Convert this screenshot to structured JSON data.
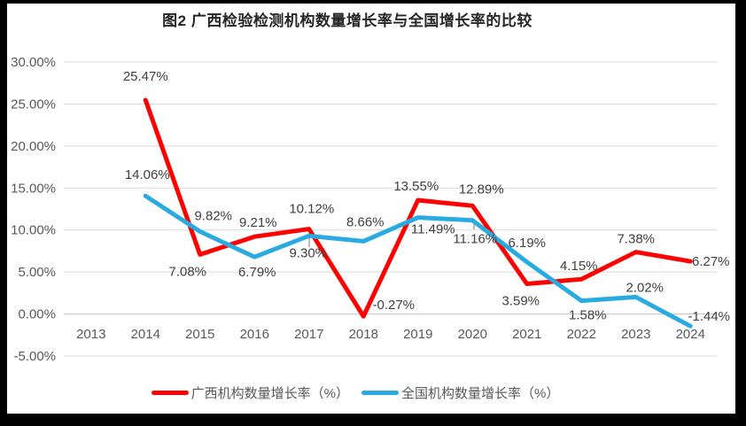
{
  "title": "图2 广西检验检测机构数量增长率与全国增长率的比较",
  "colors": {
    "background": "#FFFFFF",
    "frame": "#000000",
    "grid": "#D9D9D9",
    "zero_line": "#C3C3C3",
    "leader_line": "#A6A6A6",
    "axis_text": "#595959",
    "data_label_text": "#404040",
    "series_guangxi": "#FF0000",
    "series_national": "#29ABE2"
  },
  "chart_data": {
    "type": "line",
    "title": "图2 广西检验检测机构数量增长率与全国增长率的比较",
    "categories": [
      "2013",
      "2014",
      "2015",
      "2016",
      "2017",
      "2018",
      "2019",
      "2020",
      "2021",
      "2022",
      "2023",
      "2024"
    ],
    "xlabel": "",
    "ylabel": "",
    "grid": true,
    "legend_position": "bottom",
    "y_axis": {
      "min": -5,
      "max": 30,
      "step": 5,
      "tick_labels": [
        "30.00%",
        "25.00%",
        "20.00%",
        "15.00%",
        "10.00%",
        "5.00%",
        "0.00%",
        "-5.00%"
      ]
    },
    "series": [
      {
        "name": "广西机构数量增长率（%）",
        "color": "#FF0000",
        "x": [
          "2014",
          "2015",
          "2016",
          "2017",
          "2018",
          "2019",
          "2020",
          "2021",
          "2022",
          "2023",
          "2024"
        ],
        "values": [
          25.47,
          7.08,
          9.21,
          10.12,
          -0.27,
          13.55,
          12.89,
          3.59,
          4.15,
          7.38,
          6.27
        ],
        "labels": [
          "25.47%",
          "7.08%",
          "9.21%",
          "10.12%",
          "-0.27%",
          "13.55%",
          "12.89%",
          "3.59%",
          "4.15%",
          "7.38%",
          "6.27%"
        ],
        "label_offsets": [
          [
            0,
            -22
          ],
          [
            -14,
            24
          ],
          [
            4,
            -11
          ],
          [
            3,
            -18
          ],
          [
            34,
            -8
          ],
          [
            -2,
            -11
          ],
          [
            10,
            -14
          ],
          [
            -7,
            24
          ],
          [
            -3,
            -10
          ],
          [
            0,
            -10
          ],
          [
            23,
            5
          ]
        ]
      },
      {
        "name": "全国机构数量增长率（%）",
        "color": "#29ABE2",
        "x": [
          "2014",
          "2015",
          "2016",
          "2017",
          "2018",
          "2019",
          "2020",
          "2021",
          "2022",
          "2023",
          "2024"
        ],
        "values": [
          14.06,
          9.82,
          6.79,
          9.3,
          8.66,
          11.49,
          11.16,
          6.19,
          1.58,
          2.02,
          -1.44
        ],
        "labels": [
          "14.06%",
          "9.82%",
          "6.79%",
          "9.30%",
          "8.66%",
          "11.49%",
          "11.16%",
          "6.19%",
          "1.58%",
          "2.02%",
          "-1.44%"
        ],
        "label_offsets": [
          [
            2,
            -19
          ],
          [
            15,
            -13
          ],
          [
            3,
            22
          ],
          [
            -1,
            24
          ],
          [
            2,
            -17
          ],
          [
            17,
            18
          ],
          [
            3,
            26
          ],
          [
            0,
            -17
          ],
          [
            7,
            21
          ],
          [
            10,
            -6
          ],
          [
            21,
            -6
          ]
        ]
      }
    ]
  }
}
